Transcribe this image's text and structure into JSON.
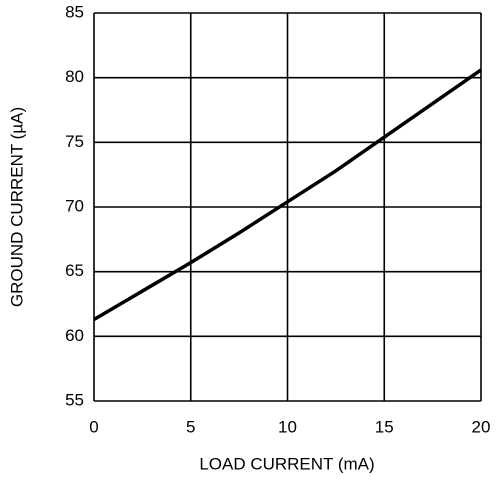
{
  "chart_data": {
    "type": "line",
    "x_label": "LOAD CURRENT (mA)",
    "y_label": "GROUND CURRENT (µA)",
    "x": [
      0,
      2.5,
      5,
      7.5,
      10,
      12.5,
      15,
      17.5,
      20
    ],
    "series": [
      {
        "color": "#000000",
        "values": [
          61.3,
          63.5,
          65.7,
          68.0,
          70.4,
          72.8,
          75.4,
          78.0,
          80.6
        ]
      }
    ],
    "xlim": [
      0,
      20
    ],
    "xticks": [
      0,
      5,
      10,
      15,
      20
    ],
    "ylim": [
      55,
      85
    ],
    "yticks": [
      55,
      60,
      65,
      70,
      75,
      80,
      85
    ],
    "grid": true
  }
}
